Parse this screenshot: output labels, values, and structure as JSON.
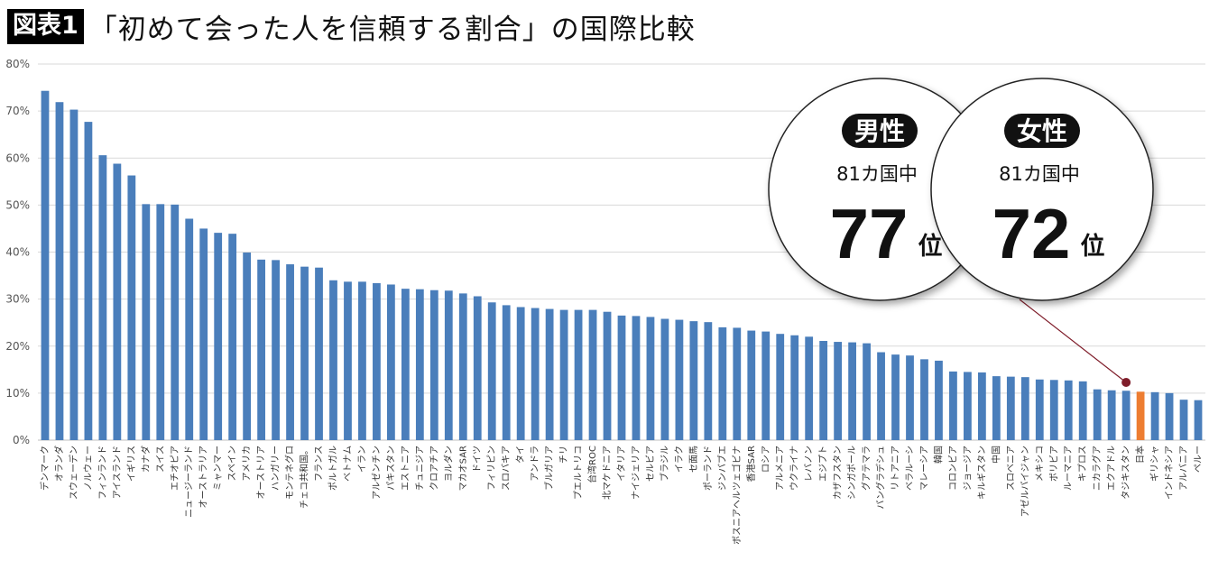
{
  "header": {
    "fig_label": "図表1",
    "title": "「初めて会った人を信頼する割合」の国際比較"
  },
  "bubbles": [
    {
      "badge": "男性",
      "sub": "81カ国中",
      "rank": "77",
      "unit": "位"
    },
    {
      "badge": "女性",
      "sub": "81カ国中",
      "rank": "72",
      "unit": "位"
    }
  ],
  "colors": {
    "bar": "#4a7ebb",
    "highlight": "#ed7d31",
    "grid": "#d9d9d9",
    "leader": "#7f1d2a"
  },
  "chart_data": {
    "type": "bar",
    "highlight": "日本",
    "ylim": [
      0,
      80
    ],
    "yticks": [
      "0%",
      "10%",
      "20%",
      "30%",
      "40%",
      "50%",
      "60%",
      "70%",
      "80%"
    ],
    "grid": true,
    "categories": [
      "デンマーク",
      "オランダ",
      "スウェーデン",
      "ノルウェー",
      "フィンランド",
      "アイスランド",
      "イギリス",
      "カナダ",
      "スイス",
      "エチオピア",
      "ニュージーランド",
      "オーストラリア",
      "ミャンマー",
      "スペイン",
      "アメリカ",
      "オーストリア",
      "ハンガリー",
      "モンテネグロ",
      "チェコ共和国。",
      "フランス",
      "ポルトガル",
      "ベトナム",
      "イラン",
      "アルゼンチン",
      "パキスタン",
      "エストニア",
      "チュニジア",
      "クロアチア",
      "ヨルダン",
      "マカオSAR",
      "ドイツ",
      "フィリピン",
      "スロバキア",
      "タイ",
      "アンドラ",
      "ブルガリア",
      "チリ",
      "プエルトリコ",
      "台湾ROC",
      "北マケドニア",
      "イタリア",
      "ナイジェリア",
      "セルビア",
      "ブラジル",
      "イラク",
      "セ面馬",
      "ポーランド",
      "ジンバブエ",
      "ボスニアヘルツェゴビナ",
      "香港SAR",
      "ロシア",
      "アルメニア",
      "ウクライナ",
      "レバノン",
      "エジプト",
      "カザフスタン",
      "シンガポール",
      "グアテマラ",
      "バングラデシュ",
      "リトアニア",
      "ベラルーシ",
      "マレーシア",
      "韓国",
      "コロンビア",
      "ジョージア",
      "キルギスタン",
      "中国",
      "スロベニア",
      "アゼルバイジャン",
      "メキシコ",
      "ボリビア",
      "ルーマニア",
      "キプロス",
      "ニカラグア",
      "エクアドル",
      "タジキスタン",
      "日本",
      "ギリシャ",
      "インドネシア",
      "アルバニア",
      "ペルー"
    ],
    "values": [
      74.3,
      71.9,
      70.3,
      67.7,
      60.6,
      58.8,
      56.3,
      50.2,
      50.2,
      50.1,
      47.1,
      45.0,
      44.1,
      43.9,
      39.9,
      38.4,
      38.3,
      37.4,
      36.9,
      36.7,
      34.0,
      33.7,
      33.7,
      33.4,
      33.1,
      32.2,
      32.1,
      31.9,
      31.8,
      31.2,
      30.6,
      29.3,
      28.7,
      28.3,
      28.1,
      27.9,
      27.7,
      27.7,
      27.7,
      27.3,
      26.5,
      26.4,
      26.2,
      25.8,
      25.6,
      25.3,
      25.1,
      24.0,
      23.9,
      23.3,
      23.1,
      22.6,
      22.3,
      22.0,
      21.1,
      20.9,
      20.8,
      20.6,
      18.7,
      18.2,
      18.0,
      17.2,
      16.9,
      14.6,
      14.5,
      14.4,
      13.6,
      13.5,
      13.4,
      12.9,
      12.8,
      12.7,
      12.5,
      10.8,
      10.6,
      10.5,
      10.3,
      10.2,
      10.0,
      8.6,
      8.5
    ]
  }
}
